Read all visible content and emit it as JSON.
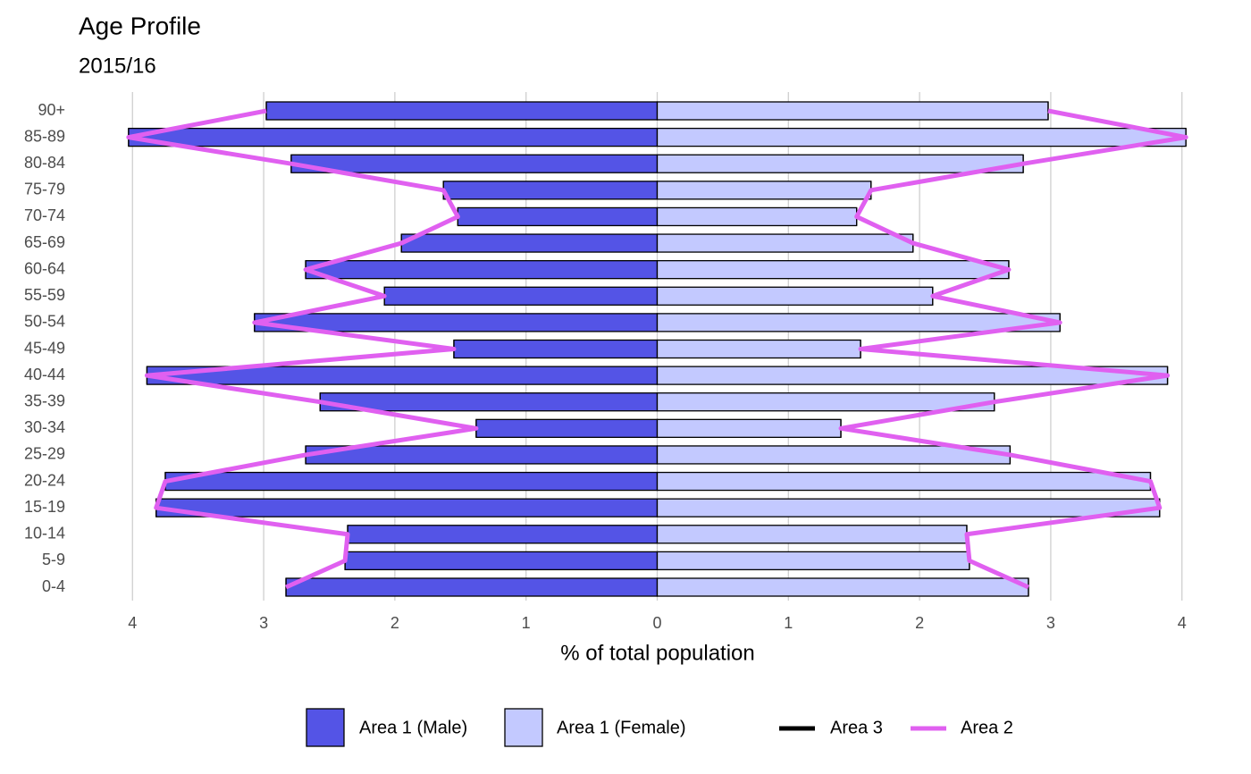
{
  "chart_data": {
    "type": "pyramid",
    "title": "Age Profile",
    "subtitle": "2015/16",
    "xlabel": "% of total population",
    "categories": [
      "0-4",
      "5-9",
      "10-14",
      "15-19",
      "20-24",
      "25-29",
      "30-34",
      "35-39",
      "40-44",
      "45-49",
      "50-54",
      "55-59",
      "60-64",
      "65-69",
      "70-74",
      "75-79",
      "80-84",
      "85-89",
      "90+"
    ],
    "bars": [
      {
        "name": "Area 1 (Male)",
        "side": "left",
        "color": "#5454e6",
        "values": [
          2.83,
          2.38,
          2.36,
          3.82,
          3.75,
          2.68,
          1.38,
          2.57,
          3.89,
          1.55,
          3.07,
          2.08,
          2.68,
          1.95,
          1.52,
          1.63,
          2.79,
          4.03,
          2.98
        ]
      },
      {
        "name": "Area 1 (Female)",
        "side": "right",
        "color": "#c3c9ff",
        "values": [
          2.83,
          2.38,
          2.36,
          3.83,
          3.76,
          2.69,
          1.4,
          2.57,
          3.89,
          1.55,
          3.07,
          2.1,
          2.68,
          1.95,
          1.52,
          1.63,
          2.79,
          4.03,
          2.98
        ]
      }
    ],
    "lines": [
      {
        "name": "Area 3",
        "color": "#000000",
        "left": [
          2.83,
          2.38,
          2.36,
          3.82,
          3.75,
          2.68,
          1.38,
          2.57,
          3.89,
          1.55,
          3.07,
          2.08,
          2.68,
          1.95,
          1.52,
          1.63,
          2.79,
          4.03,
          2.98
        ],
        "right": [
          2.83,
          2.38,
          2.36,
          3.83,
          3.76,
          2.69,
          1.4,
          2.57,
          3.89,
          1.55,
          3.07,
          2.1,
          2.68,
          1.95,
          1.52,
          1.63,
          2.79,
          4.03,
          2.98
        ]
      },
      {
        "name": "Area 2",
        "color": "#e060f0",
        "left": [
          2.83,
          2.38,
          2.36,
          3.82,
          3.75,
          2.68,
          1.38,
          2.57,
          3.89,
          1.55,
          3.07,
          2.08,
          2.68,
          1.95,
          1.52,
          1.63,
          2.79,
          4.03,
          2.98
        ],
        "right": [
          2.83,
          2.38,
          2.36,
          3.83,
          3.76,
          2.69,
          1.4,
          2.57,
          3.89,
          1.55,
          3.07,
          2.1,
          2.68,
          1.95,
          1.52,
          1.63,
          2.79,
          4.03,
          2.98
        ]
      }
    ],
    "xlim": [
      -4.07,
      4.07
    ],
    "xticks": [
      {
        "value": -4,
        "label": "4"
      },
      {
        "value": -3,
        "label": "3"
      },
      {
        "value": -2,
        "label": "2"
      },
      {
        "value": -1,
        "label": "1"
      },
      0,
      1,
      2,
      3,
      4
    ],
    "grid": true
  }
}
